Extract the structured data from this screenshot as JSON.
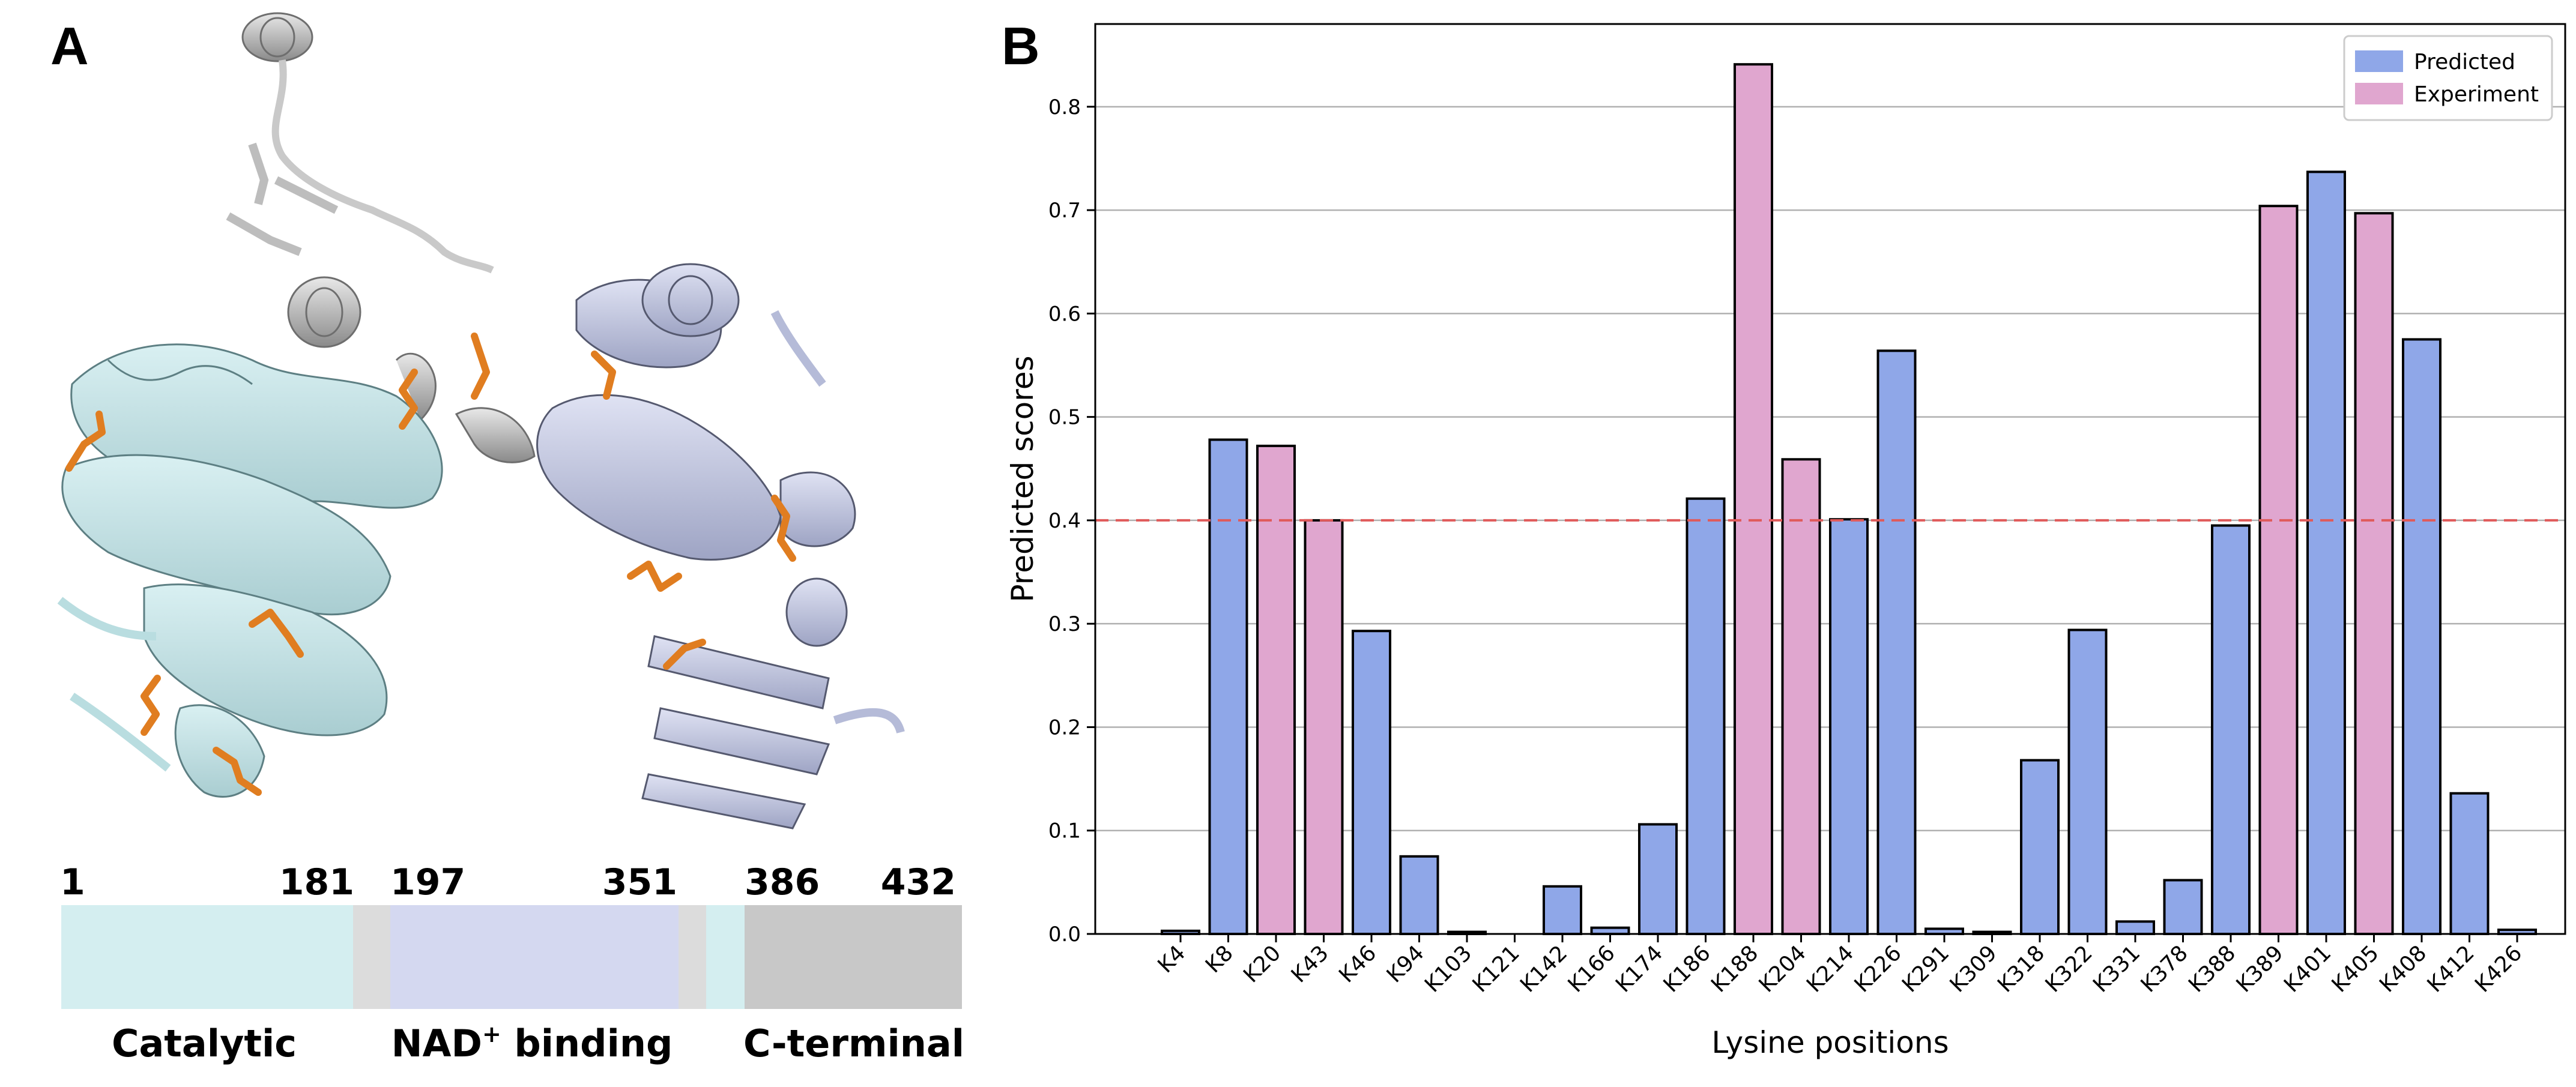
{
  "panel_a": {
    "label": "A",
    "domain_map": {
      "positions": [
        "1",
        "181",
        "197",
        "351",
        "386",
        "432"
      ],
      "domains": [
        "Catalytic",
        "NAD",
        "+",
        " binding",
        "C-terminal"
      ],
      "colors": {
        "catalytic": "#d4eef0",
        "nad": "#d4d8f0",
        "cterm": "#c8c8c8",
        "linker": "#dcdcdc"
      }
    },
    "colors": {
      "catalytic_cartoon": "#b9dde0",
      "nad_cartoon": "#b5bbd8",
      "cterm_cartoon": "#9c9c9c",
      "lysine": "#e07d20"
    }
  },
  "chart_data": {
    "panel_label": "B",
    "type": "bar",
    "xlabel": "Lysine positions",
    "ylabel": "Predicted scores",
    "ylim": [
      0,
      0.88
    ],
    "yticks": [
      0.0,
      0.1,
      0.2,
      0.3,
      0.4,
      0.5,
      0.6,
      0.7,
      0.8
    ],
    "ytick_labels": [
      "0.0",
      "0.1",
      "0.2",
      "0.3",
      "0.4",
      "0.5",
      "0.6",
      "0.7",
      "0.8"
    ],
    "grid": "horizontal",
    "threshold": 0.4,
    "threshold_color": "#e05a5a",
    "legend_position": "top-right",
    "legend": [
      {
        "label": "Predicted",
        "color": "#8fa7e8"
      },
      {
        "label": "Experiment",
        "color": "#e0a6cf"
      }
    ],
    "categories": [
      "K4",
      "K8",
      "K20",
      "K43",
      "K46",
      "K94",
      "K103",
      "K121",
      "K142",
      "K166",
      "K174",
      "K186",
      "K188",
      "K204",
      "K214",
      "K226",
      "K291",
      "K309",
      "K318",
      "K322",
      "K331",
      "K378",
      "K388",
      "K389",
      "K401",
      "K405",
      "K408",
      "K412",
      "K426"
    ],
    "values": [
      0.003,
      0.478,
      0.472,
      0.4,
      0.293,
      0.075,
      0.002,
      0.0,
      0.046,
      0.006,
      0.106,
      0.421,
      0.841,
      0.459,
      0.401,
      0.564,
      0.005,
      0.002,
      0.168,
      0.294,
      0.012,
      0.052,
      0.395,
      0.704,
      0.737,
      0.697,
      0.575,
      0.136,
      0.004
    ],
    "groups": [
      "Predicted",
      "Predicted",
      "Experiment",
      "Experiment",
      "Predicted",
      "Predicted",
      "Predicted",
      "Predicted",
      "Predicted",
      "Predicted",
      "Predicted",
      "Predicted",
      "Experiment",
      "Experiment",
      "Predicted",
      "Predicted",
      "Predicted",
      "Predicted",
      "Predicted",
      "Predicted",
      "Predicted",
      "Predicted",
      "Predicted",
      "Experiment",
      "Predicted",
      "Experiment",
      "Predicted",
      "Predicted",
      "Predicted"
    ]
  }
}
